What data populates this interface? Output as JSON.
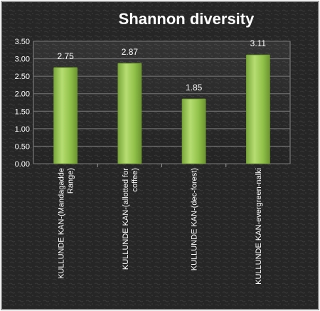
{
  "chart_data": {
    "type": "bar",
    "title": "Shannon diversity",
    "xlabel": "",
    "ylabel": "",
    "categories": [
      "KULLUNDE KAN-(Mandagadde Range)",
      "KULLUNDE KAN-(allotted for coffee)",
      "KULLUNDE KAN-(dec-forest)",
      "KULLUNDE KAN-evergreen-nalki"
    ],
    "category_label_lines": [
      [
        "KULLUNDE KAN-(Mandagadde",
        "Range)"
      ],
      [
        "KULLUNDE KAN-(allotted for",
        "coffee)"
      ],
      [
        "KULLUNDE KAN-(dec-forest)"
      ],
      [
        "KULLUNDE KAN-evergreen-nalki"
      ]
    ],
    "values": [
      2.75,
      2.87,
      1.85,
      3.11
    ],
    "data_labels": [
      "2.75",
      "2.87",
      "1.85",
      "3.11"
    ],
    "ylim": [
      0,
      3.5
    ],
    "yticks": [
      "0.00",
      "0.50",
      "1.00",
      "1.50",
      "2.00",
      "2.50",
      "3.00",
      "3.50"
    ],
    "grid": true,
    "legend": "none",
    "colors": {
      "bar": "#92c24a",
      "bar_dark": "#6f9a30",
      "bar_light": "#c4e58a",
      "background": "#2a2a2a",
      "text": "#ffffff"
    }
  }
}
